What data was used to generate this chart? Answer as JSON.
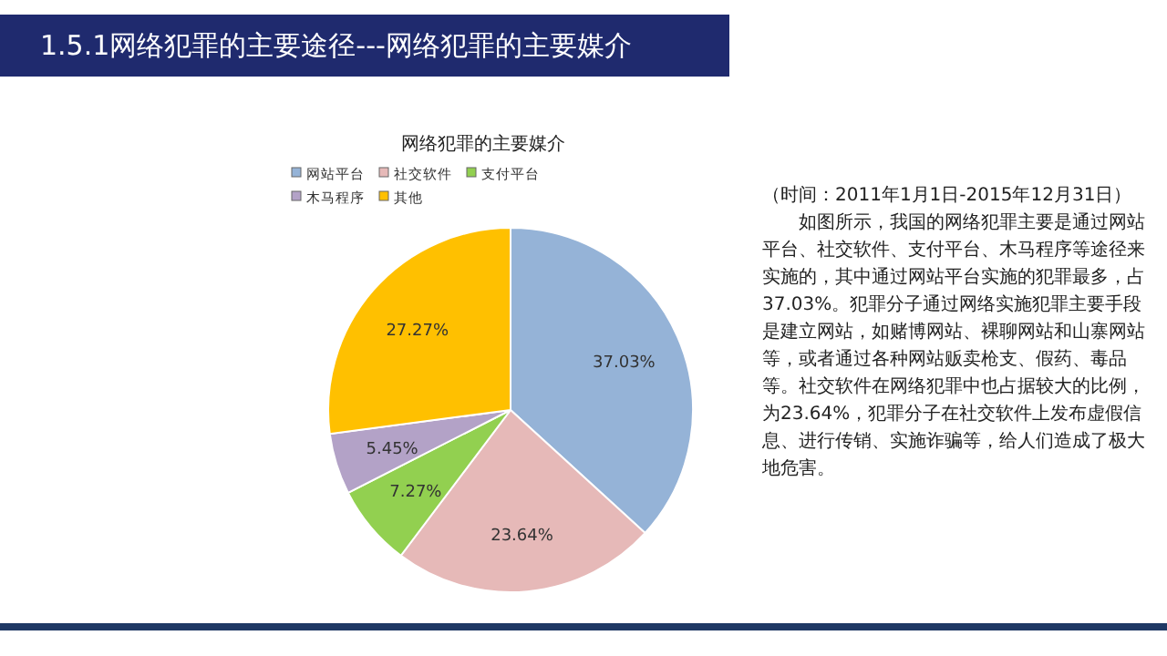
{
  "chart_data": {
    "type": "pie",
    "title": "1.5.1网络犯罪的主要途径---网络犯罪的主要媒介",
    "subtitle": "网络犯罪的主要媒介",
    "categories": [
      "网站平台",
      "社交软件",
      "支付平台",
      "木马程序",
      "其他"
    ],
    "values": [
      37.03,
      23.64,
      7.27,
      5.45,
      27.27
    ],
    "colors": [
      "#95b3d7",
      "#e6b9b8",
      "#92d050",
      "#b3a2c7",
      "#ffc000"
    ],
    "value_labels": [
      "37.03%",
      "23.64%",
      "7.27%",
      "5.45%",
      "27.27%"
    ],
    "legend": "top left",
    "annotations": [
      "（时间：2011年1月1日-2015年12月31日）",
      "如图所示，我国的网络犯罪主要是通过网站平台、社交软件、支付平台、木马程序等途径来实施的，其中通过网站平台实施的犯罪最多，占37.03%。犯罪分子通过网络实施犯罪主要手段是建立网站，如赌博网站、裸聊网站和山寨网站等，或者通过各种网站贩卖枪支、假药、毒品等。社交软件在网络犯罪中也占据较大的比例，为23.64%，犯罪分子在社交软件上发布虚假信息、进行传销、实施诈骗等，给人们造成了极大地危害。"
    ]
  }
}
